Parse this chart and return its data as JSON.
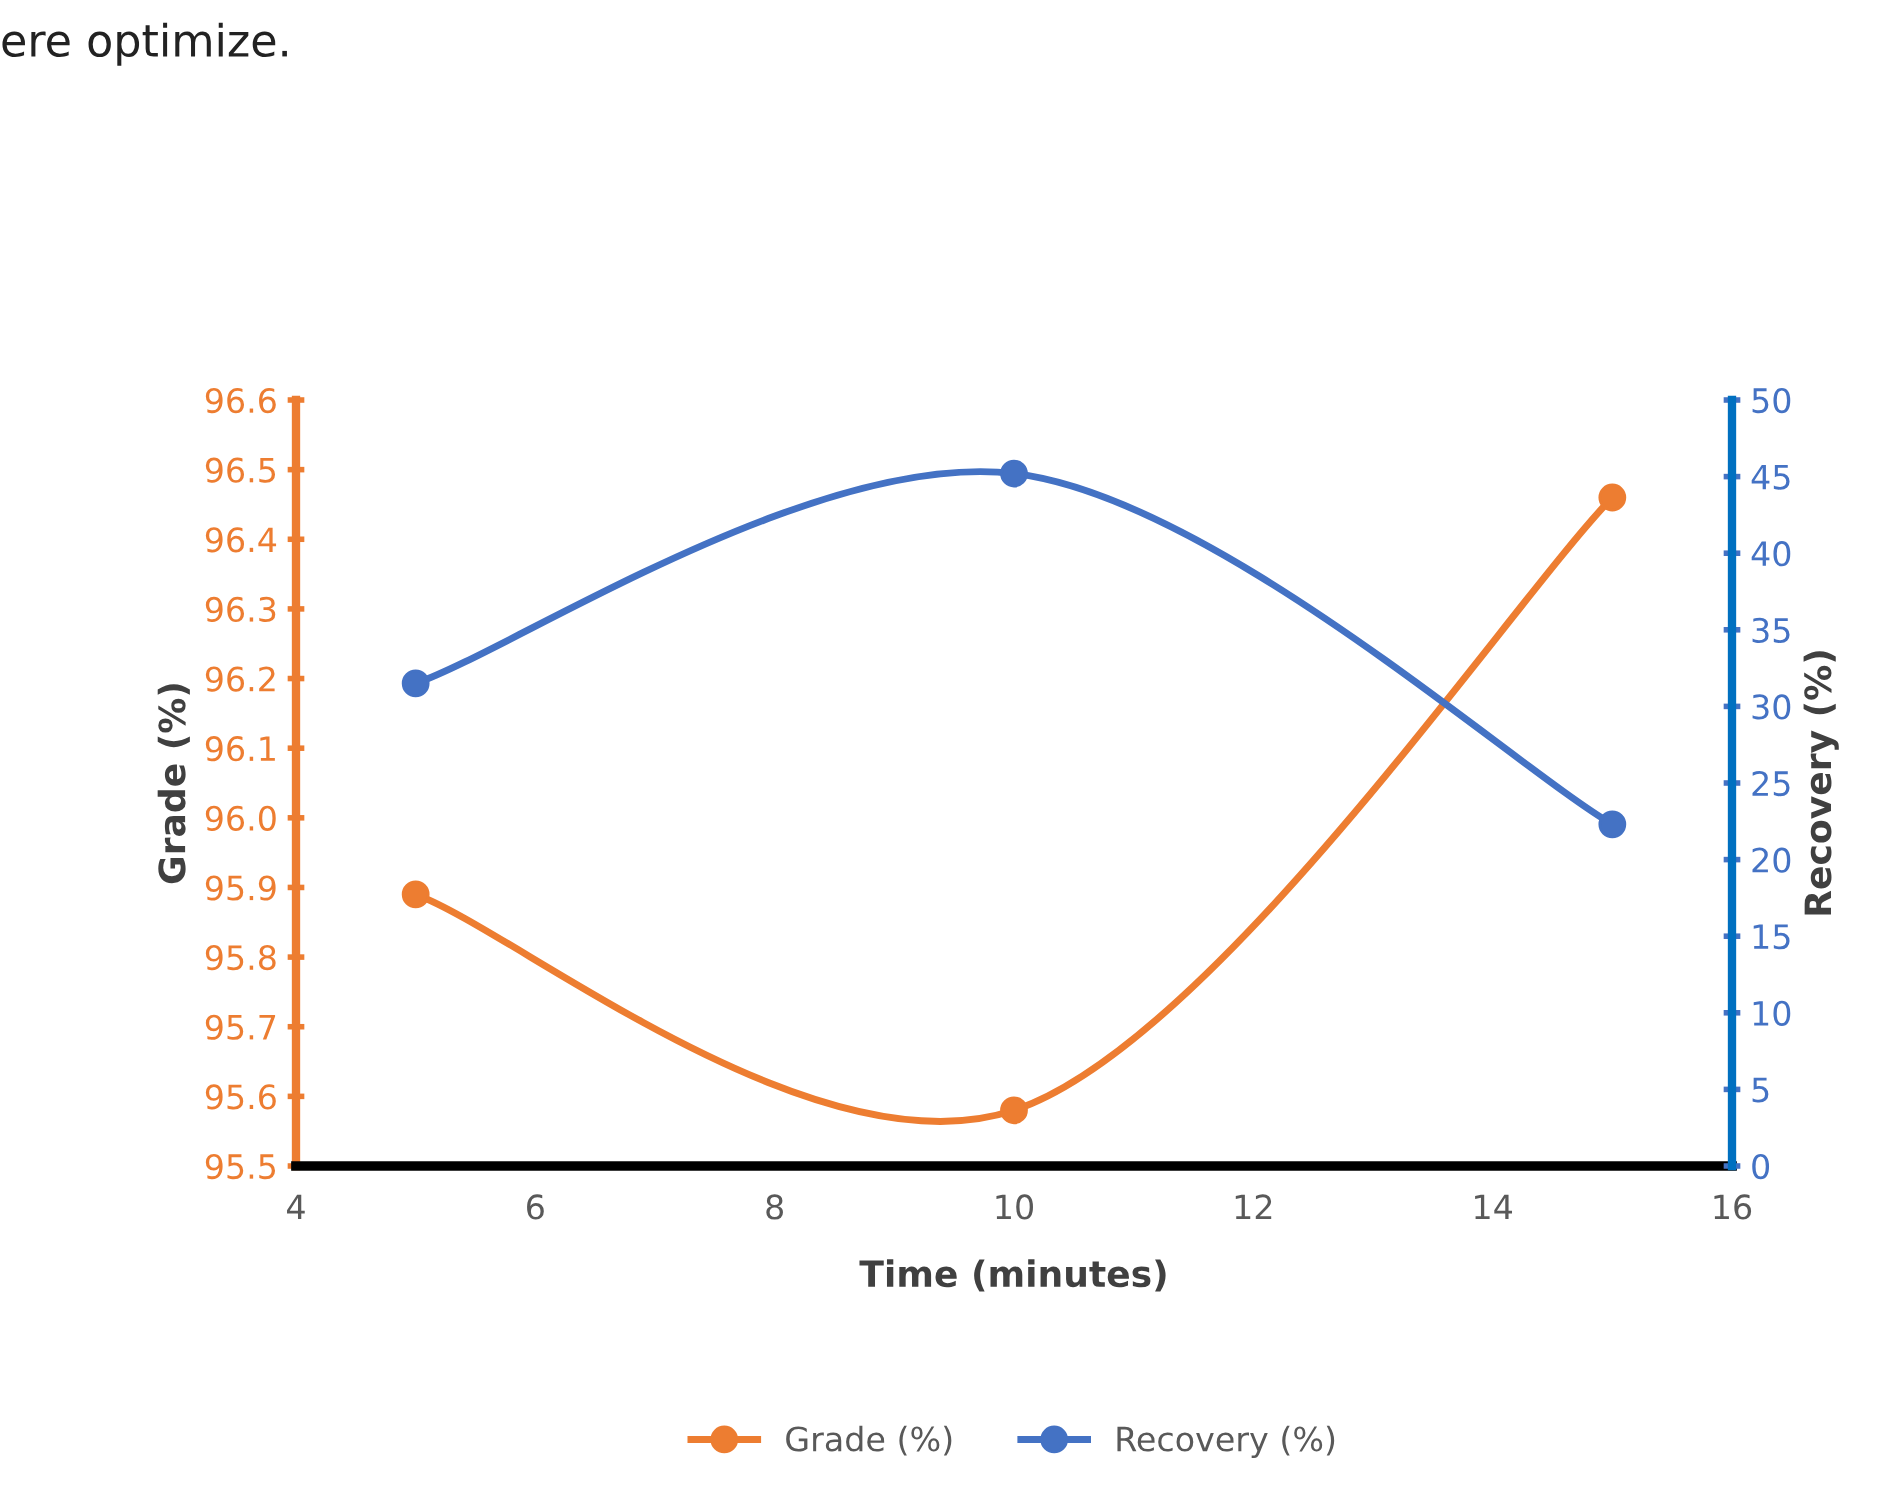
{
  "chart_data": {
    "type": "line",
    "xlabel": "Time (minutes)",
    "ylabel": "Grade (%)",
    "y2label": "Recovery (%)",
    "annotations": [
      "ere optimize."
    ],
    "series": [
      {
        "name": "Grade (%)",
        "color": "#ed7d31",
        "x": [
          5,
          10,
          15
        ],
        "values": [
          95.89,
          95.58,
          96.46
        ]
      },
      {
        "name": "Recovery (%)",
        "color": "#4472c4",
        "x": [
          5,
          10,
          15
        ],
        "values": [
          31.5,
          45.2,
          22.3
        ],
        "axis": "y2"
      }
    ],
    "xlim": [
      4,
      16
    ],
    "xticks": [
      4,
      6,
      8,
      10,
      12,
      14,
      16
    ],
    "ylim": [
      95.5,
      96.6
    ],
    "yticks": [
      {
        "value": 95.5,
        "label": "95.5"
      },
      {
        "value": 95.6,
        "label": "95.6"
      },
      {
        "value": 95.7,
        "label": "95.7"
      },
      {
        "value": 95.8,
        "label": "95.8"
      },
      {
        "value": 95.9,
        "label": "95.9"
      },
      {
        "value": 96.0,
        "label": "96.0"
      },
      {
        "value": 96.1,
        "label": "96.1"
      },
      {
        "value": 96.2,
        "label": "96.2"
      },
      {
        "value": 96.3,
        "label": "96.3"
      },
      {
        "value": 96.4,
        "label": "96.4"
      },
      {
        "value": 96.5,
        "label": "96.5"
      },
      {
        "value": 96.6,
        "label": "96.6"
      }
    ],
    "y2lim": [
      0,
      50
    ],
    "y2ticks": [
      0,
      5,
      10,
      15,
      20,
      25,
      30,
      35,
      40,
      45,
      50
    ],
    "grid": false,
    "legend": "bottom",
    "marker": "circle",
    "line_style": "solid"
  }
}
